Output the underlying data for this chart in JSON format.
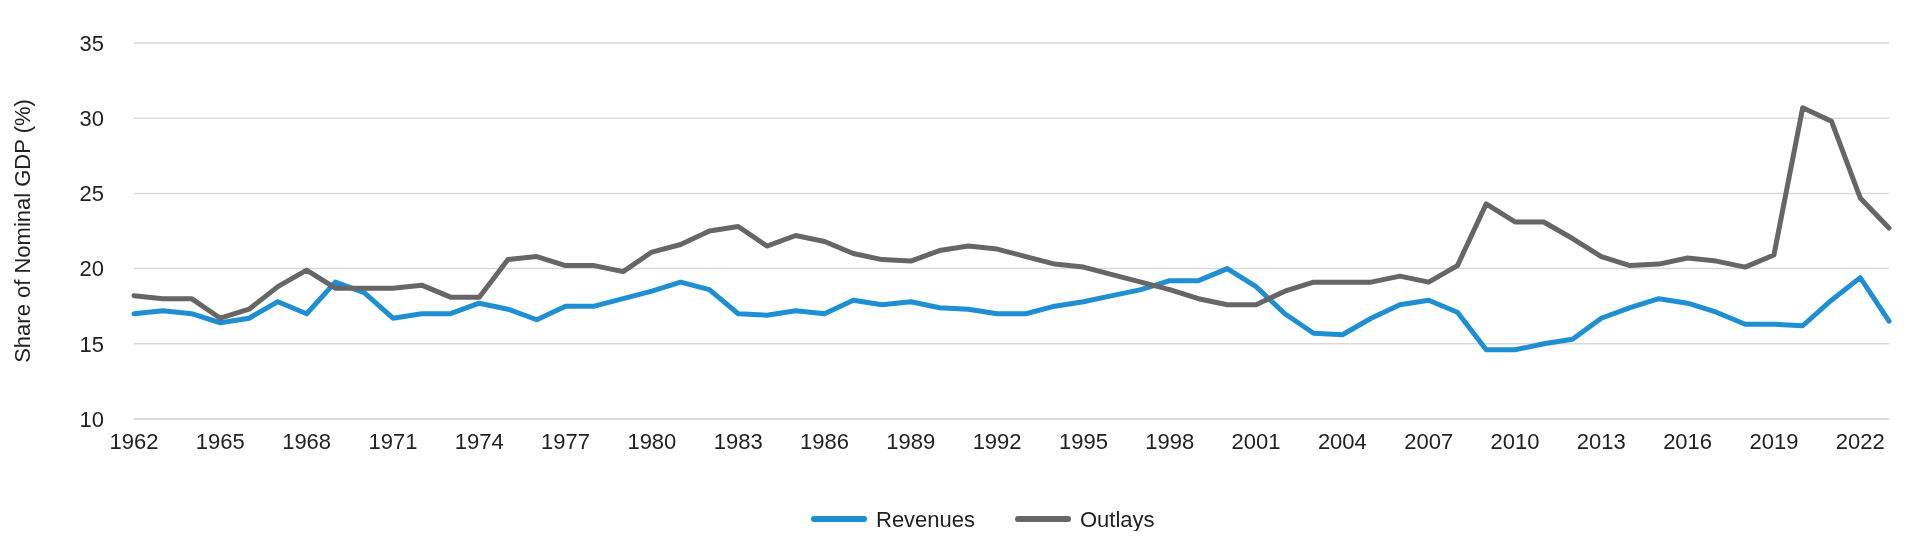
{
  "chart_data": {
    "type": "line",
    "ylabel": "Share of Nominal GDP (%)",
    "x": [
      1962,
      1963,
      1964,
      1965,
      1966,
      1967,
      1968,
      1969,
      1970,
      1971,
      1972,
      1973,
      1974,
      1975,
      1976,
      1977,
      1978,
      1979,
      1980,
      1981,
      1982,
      1983,
      1984,
      1985,
      1986,
      1987,
      1988,
      1989,
      1990,
      1991,
      1992,
      1993,
      1994,
      1995,
      1996,
      1997,
      1998,
      1999,
      2000,
      2001,
      2002,
      2003,
      2004,
      2005,
      2006,
      2007,
      2008,
      2009,
      2010,
      2011,
      2012,
      2013,
      2014,
      2015,
      2016,
      2017,
      2018,
      2019,
      2020,
      2021,
      2022,
      2023
    ],
    "xlim": [
      1962,
      2023
    ],
    "xticks": [
      1962,
      1965,
      1968,
      1971,
      1974,
      1977,
      1980,
      1983,
      1986,
      1989,
      1992,
      1995,
      1998,
      2001,
      2004,
      2007,
      2010,
      2013,
      2016,
      2019,
      2022
    ],
    "ylim": [
      10,
      35
    ],
    "yticks": [
      10,
      15,
      20,
      25,
      30,
      35
    ],
    "grid": "y",
    "legend": "bottom",
    "marker": "none",
    "line_style": "solid",
    "series": [
      {
        "name": "Revenues",
        "color": "#1f8fd3",
        "values": [
          17.0,
          17.2,
          17.0,
          16.4,
          16.7,
          17.8,
          17.0,
          19.1,
          18.4,
          16.7,
          17.0,
          17.0,
          17.7,
          17.3,
          16.6,
          17.5,
          17.5,
          18.0,
          18.5,
          19.1,
          18.6,
          17.0,
          16.9,
          17.2,
          17.0,
          17.9,
          17.6,
          17.8,
          17.4,
          17.3,
          17.0,
          17.0,
          17.5,
          17.8,
          18.2,
          18.6,
          19.2,
          19.2,
          20.0,
          18.8,
          17.0,
          15.7,
          15.6,
          16.7,
          17.6,
          17.9,
          17.1,
          14.6,
          14.6,
          15.0,
          15.3,
          16.7,
          17.4,
          18.0,
          17.7,
          17.1,
          16.3,
          16.3,
          16.2,
          17.9,
          19.4,
          16.5
        ]
      },
      {
        "name": "Outlays",
        "color": "#666666",
        "values": [
          18.2,
          18.0,
          18.0,
          16.7,
          17.3,
          18.8,
          19.9,
          18.7,
          18.7,
          18.7,
          18.9,
          18.1,
          18.1,
          20.6,
          20.8,
          20.2,
          20.2,
          19.8,
          21.1,
          21.6,
          22.5,
          22.8,
          21.5,
          22.2,
          21.8,
          21.0,
          20.6,
          20.5,
          21.2,
          21.5,
          21.3,
          20.8,
          20.3,
          20.1,
          19.6,
          19.1,
          18.6,
          18.0,
          17.6,
          17.6,
          18.5,
          19.1,
          19.1,
          19.1,
          19.5,
          19.1,
          20.2,
          24.3,
          23.1,
          23.1,
          22.0,
          20.8,
          20.2,
          20.3,
          20.7,
          20.5,
          20.1,
          20.9,
          30.7,
          29.8,
          24.7,
          22.7
        ]
      }
    ]
  }
}
